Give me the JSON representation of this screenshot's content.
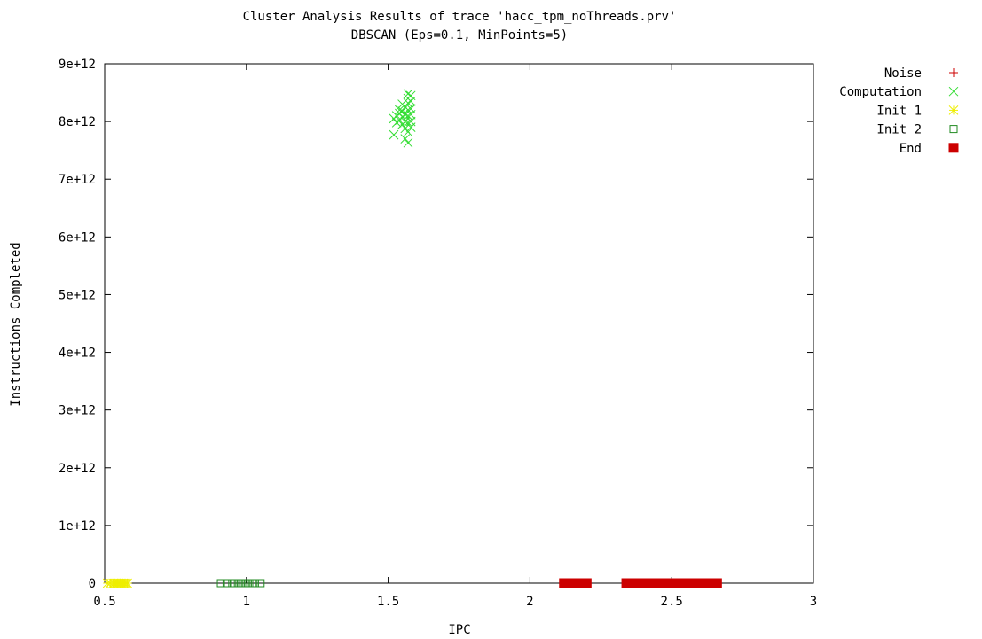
{
  "chart_data": {
    "type": "scatter",
    "title": "Cluster Analysis Results of trace 'hacc_tpm_noThreads.prv'",
    "subtitle": "DBSCAN (Eps=0.1, MinPoints=5)",
    "xlabel": "IPC",
    "ylabel": "Instructions Completed",
    "xlim": [
      0.5,
      3
    ],
    "ylim": [
      0,
      9000000000000.0
    ],
    "x_ticks": [
      0.5,
      1,
      1.5,
      2,
      2.5,
      3
    ],
    "x_tick_labels": [
      "0.5",
      "1",
      "1.5",
      "2",
      "2.5",
      "3"
    ],
    "y_ticks": [
      0,
      1000000000000.0,
      2000000000000.0,
      3000000000000.0,
      4000000000000.0,
      5000000000000.0,
      6000000000000.0,
      7000000000000.0,
      8000000000000.0,
      9000000000000.0
    ],
    "y_tick_labels": [
      "0",
      "1e+12",
      "2e+12",
      "3e+12",
      "4e+12",
      "5e+12",
      "6e+12",
      "7e+12",
      "8e+12",
      "9e+12"
    ],
    "grid": false,
    "legend_position": "top-right-outside",
    "series": [
      {
        "name": "Noise",
        "marker": "plus",
        "color": "#cc0000",
        "points": []
      },
      {
        "name": "Computation",
        "marker": "cross",
        "color": "#33dd33",
        "points": [
          [
            1.52,
            7770000000000.0
          ],
          [
            1.52,
            8050000000000.0
          ],
          [
            1.53,
            8100000000000.0
          ],
          [
            1.53,
            7980000000000.0
          ],
          [
            1.54,
            8140000000000.0
          ],
          [
            1.54,
            8020000000000.0
          ],
          [
            1.55,
            8180000000000.0
          ],
          [
            1.55,
            8080000000000.0
          ],
          [
            1.55,
            7950000000000.0
          ],
          [
            1.56,
            8250000000000.0
          ],
          [
            1.56,
            8120000000000.0
          ],
          [
            1.56,
            8000000000000.0
          ],
          [
            1.56,
            7880000000000.0
          ],
          [
            1.56,
            7700000000000.0
          ],
          [
            1.57,
            8480000000000.0
          ],
          [
            1.57,
            8400000000000.0
          ],
          [
            1.57,
            8320000000000.0
          ],
          [
            1.57,
            8200000000000.0
          ],
          [
            1.57,
            8100000000000.0
          ],
          [
            1.57,
            7980000000000.0
          ],
          [
            1.57,
            7820000000000.0
          ],
          [
            1.57,
            7630000000000.0
          ],
          [
            1.58,
            8450000000000.0
          ],
          [
            1.58,
            8350000000000.0
          ],
          [
            1.58,
            8220000000000.0
          ],
          [
            1.58,
            8120000000000.0
          ],
          [
            1.58,
            8000000000000.0
          ],
          [
            1.58,
            7900000000000.0
          ],
          [
            1.54,
            8200000000000.0
          ],
          [
            1.55,
            8300000000000.0
          ]
        ]
      },
      {
        "name": "Init 1",
        "marker": "star",
        "color": "#eeee00",
        "points": [
          [
            0.51,
            0
          ],
          [
            0.52,
            0
          ],
          [
            0.53,
            0
          ],
          [
            0.535,
            0
          ],
          [
            0.54,
            0
          ],
          [
            0.545,
            0
          ],
          [
            0.55,
            0
          ],
          [
            0.555,
            0
          ],
          [
            0.56,
            0
          ],
          [
            0.565,
            0
          ],
          [
            0.57,
            0
          ],
          [
            0.575,
            0
          ],
          [
            0.58,
            0
          ]
        ]
      },
      {
        "name": "Init 2",
        "marker": "box",
        "color": "#228b22",
        "points": [
          [
            0.91,
            0
          ],
          [
            0.93,
            0
          ],
          [
            0.95,
            0
          ],
          [
            0.96,
            0
          ],
          [
            0.97,
            0
          ],
          [
            0.98,
            0
          ],
          [
            0.99,
            0
          ],
          [
            1.0,
            0
          ],
          [
            1.01,
            0
          ],
          [
            1.02,
            0
          ],
          [
            1.03,
            0
          ],
          [
            1.05,
            0
          ]
        ]
      },
      {
        "name": "End",
        "marker": "filled-box",
        "color": "#cc0000",
        "points": [
          [
            2.12,
            0
          ],
          [
            2.14,
            0
          ],
          [
            2.16,
            0
          ],
          [
            2.18,
            0
          ],
          [
            2.2,
            0
          ],
          [
            2.34,
            0
          ],
          [
            2.37,
            0
          ],
          [
            2.4,
            0
          ],
          [
            2.43,
            0
          ],
          [
            2.46,
            0
          ],
          [
            2.49,
            0
          ],
          [
            2.52,
            0
          ],
          [
            2.55,
            0
          ],
          [
            2.58,
            0
          ],
          [
            2.61,
            0
          ],
          [
            2.64,
            0
          ],
          [
            2.66,
            0
          ]
        ]
      }
    ]
  }
}
